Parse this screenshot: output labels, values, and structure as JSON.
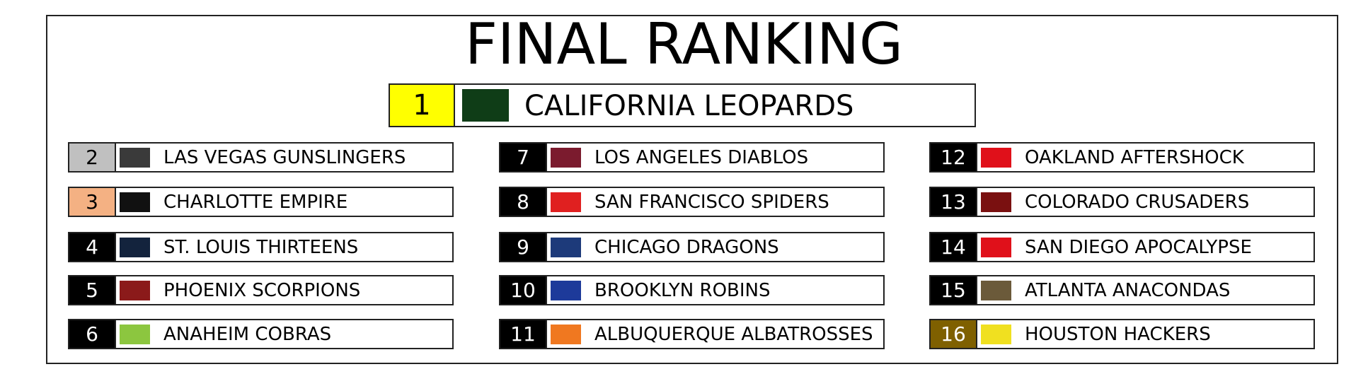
{
  "header": {
    "title": "FINAL RANKING"
  },
  "champion": {
    "rank": 1,
    "name": "CALIFORNIA LEOPARDS"
  },
  "teams": [
    {
      "rank": 2,
      "name": "LAS VEGAS GUNSLINGERS"
    },
    {
      "rank": 3,
      "name": "CHARLOTTE EMPIRE"
    },
    {
      "rank": 4,
      "name": "ST. LOUIS THIRTEENS"
    },
    {
      "rank": 5,
      "name": "PHOENIX SCORPIONS"
    },
    {
      "rank": 6,
      "name": "ANAHEIM COBRAS"
    },
    {
      "rank": 7,
      "name": "LOS ANGELES DIABLOS"
    },
    {
      "rank": 8,
      "name": "SAN FRANCISCO SPIDERS"
    },
    {
      "rank": 9,
      "name": "CHICAGO DRAGONS"
    },
    {
      "rank": 10,
      "name": "BROOKLYN ROBINS"
    },
    {
      "rank": 11,
      "name": "ALBUQUERQUE ALBATROSSES"
    },
    {
      "rank": 12,
      "name": "OAKLAND AFTERSHOCK"
    },
    {
      "rank": 13,
      "name": "COLORADO CRUSADERS"
    },
    {
      "rank": 14,
      "name": "SAN DIEGO APOCALYPSE"
    },
    {
      "rank": 15,
      "name": "ATLANTA ANACONDAS"
    },
    {
      "rank": 16,
      "name": "HOUSTON HACKERS"
    }
  ]
}
